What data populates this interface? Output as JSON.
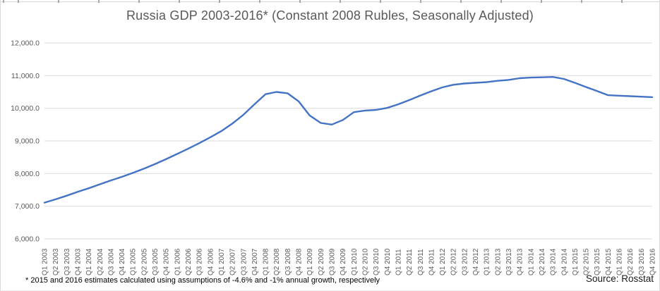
{
  "chart": {
    "title": "Russia GDP 2003-2016* (Constant 2008 Rubles, Seasonally Adjusted)",
    "footnote": "* 2015 and 2016 estimates calculated using assumptions of -4.6% and -1% annual growth, respectively",
    "source": "Source: Rosstat"
  },
  "chart_data": {
    "type": "line",
    "title": "Russia GDP 2003-2016* (Constant 2008 Rubles, Seasonally Adjusted)",
    "xlabel": "",
    "ylabel": "",
    "ylim": [
      6000,
      12000
    ],
    "ytick_interval": 1000,
    "ytick_labels": [
      "6,000.0",
      "7,000.0",
      "8,000.0",
      "9,000.0",
      "10,000.0",
      "11,000.0",
      "12,000.0"
    ],
    "grid": true,
    "legend": false,
    "line_color": "#4472C4",
    "categories": [
      "Q1 2003",
      "Q2 2003",
      "Q3 2003",
      "Q4 2003",
      "Q1 2004",
      "Q2 2004",
      "Q3 2004",
      "Q4 2004",
      "Q1 2005",
      "Q2 2005",
      "Q3 2005",
      "Q4 2005",
      "Q1 2006",
      "Q2 2006",
      "Q3 2006",
      "Q4 2006",
      "Q1 2007",
      "Q2 2007",
      "Q3 2007",
      "Q4 2007",
      "Q1 2008",
      "Q2 2008",
      "Q3 2008",
      "Q4 2008",
      "Q1 2009",
      "Q2 2009",
      "Q3 2009",
      "Q4 2009",
      "Q1 2010",
      "Q2 2010",
      "Q3 2010",
      "Q4 2010",
      "Q1 2011",
      "Q2 2011",
      "Q3 2011",
      "Q4 2011",
      "Q1 2012",
      "Q2 2012",
      "Q3 2012",
      "Q4 2012",
      "Q1 2013",
      "Q2 2013",
      "Q3 2013",
      "Q4 2013",
      "Q1 2014",
      "Q2 2014",
      "Q3 2014",
      "Q4 2014",
      "Q1 2015",
      "Q2 2015",
      "Q3 2015",
      "Q4 2015",
      "Q1 2016",
      "Q2 2016",
      "Q3 2016",
      "Q4 2016"
    ],
    "values": [
      7110,
      7210,
      7320,
      7440,
      7550,
      7670,
      7790,
      7900,
      8020,
      8150,
      8290,
      8440,
      8600,
      8760,
      8930,
      9110,
      9300,
      9530,
      9800,
      10120,
      10430,
      10500,
      10460,
      10210,
      9780,
      9550,
      9500,
      9640,
      9880,
      9930,
      9950,
      10010,
      10120,
      10250,
      10390,
      10520,
      10640,
      10720,
      10760,
      10780,
      10800,
      10840,
      10870,
      10920,
      10940,
      10950,
      10960,
      10900,
      10780,
      10650,
      10530,
      10400,
      10385,
      10370,
      10355,
      10340
    ],
    "annotations": [
      "* 2015 and 2016 estimates calculated using assumptions of -4.6% and -1% annual growth, respectively",
      "Source: Rosstat"
    ]
  },
  "colors": {
    "line": "#4472C4",
    "gridline": "#D9D9D9",
    "axis_text": "#595959",
    "title_text": "#595959",
    "background": "#FFFFFF"
  }
}
